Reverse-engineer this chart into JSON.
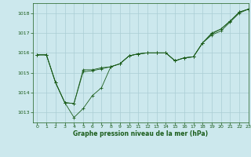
{
  "title": "Graphe pression niveau de la mer (hPa)",
  "bg_color": "#cce8ed",
  "grid_color": "#aacdd4",
  "line_color": "#1a5c1a",
  "xlim": [
    -0.5,
    23
  ],
  "ylim": [
    1012.5,
    1018.5
  ],
  "yticks": [
    1013,
    1014,
    1015,
    1016,
    1017,
    1018
  ],
  "xticks": [
    0,
    1,
    2,
    3,
    4,
    5,
    6,
    7,
    8,
    9,
    10,
    11,
    12,
    13,
    14,
    15,
    16,
    17,
    18,
    19,
    20,
    21,
    22,
    23
  ],
  "series": [
    [
      0,
      1015.9
    ],
    [
      1,
      1015.9
    ],
    [
      2,
      1014.5
    ],
    [
      3,
      1013.5
    ],
    [
      4,
      1012.75
    ],
    [
      5,
      1013.2
    ],
    [
      6,
      1013.85
    ],
    [
      7,
      1014.25
    ],
    [
      8,
      1015.3
    ],
    [
      9,
      1015.45
    ],
    [
      10,
      1015.85
    ],
    [
      11,
      1015.95
    ],
    [
      12,
      1016.0
    ],
    [
      13,
      1016.0
    ],
    [
      14,
      1016.0
    ],
    [
      15,
      1015.6
    ],
    [
      16,
      1015.75
    ],
    [
      17,
      1015.8
    ],
    [
      18,
      1016.5
    ],
    [
      19,
      1016.9
    ],
    [
      20,
      1017.1
    ],
    [
      21,
      1017.55
    ],
    [
      22,
      1018.0
    ],
    [
      23,
      1018.2
    ]
  ],
  "series2": [
    [
      0,
      1015.9
    ],
    [
      1,
      1015.9
    ],
    [
      2,
      1014.5
    ],
    [
      3,
      1013.5
    ],
    [
      4,
      1013.45
    ],
    [
      5,
      1015.05
    ],
    [
      6,
      1015.1
    ],
    [
      7,
      1015.2
    ],
    [
      8,
      1015.3
    ],
    [
      9,
      1015.45
    ],
    [
      10,
      1015.85
    ],
    [
      11,
      1015.95
    ],
    [
      12,
      1016.0
    ],
    [
      13,
      1016.0
    ],
    [
      14,
      1016.0
    ],
    [
      15,
      1015.6
    ],
    [
      16,
      1015.75
    ],
    [
      17,
      1015.8
    ],
    [
      18,
      1016.5
    ],
    [
      19,
      1017.0
    ],
    [
      20,
      1017.2
    ],
    [
      21,
      1017.6
    ],
    [
      22,
      1018.05
    ],
    [
      23,
      1018.2
    ]
  ],
  "series3": [
    [
      0,
      1015.9
    ],
    [
      1,
      1015.9
    ],
    [
      2,
      1014.5
    ],
    [
      3,
      1013.5
    ],
    [
      4,
      1013.45
    ],
    [
      5,
      1015.15
    ],
    [
      6,
      1015.15
    ],
    [
      7,
      1015.25
    ],
    [
      8,
      1015.3
    ],
    [
      9,
      1015.45
    ],
    [
      10,
      1015.85
    ],
    [
      11,
      1015.95
    ],
    [
      12,
      1016.0
    ],
    [
      13,
      1016.0
    ],
    [
      14,
      1016.0
    ],
    [
      15,
      1015.6
    ],
    [
      16,
      1015.75
    ],
    [
      17,
      1015.8
    ],
    [
      18,
      1016.5
    ],
    [
      19,
      1016.95
    ],
    [
      20,
      1017.2
    ],
    [
      21,
      1017.6
    ],
    [
      22,
      1018.05
    ],
    [
      23,
      1018.2
    ]
  ]
}
